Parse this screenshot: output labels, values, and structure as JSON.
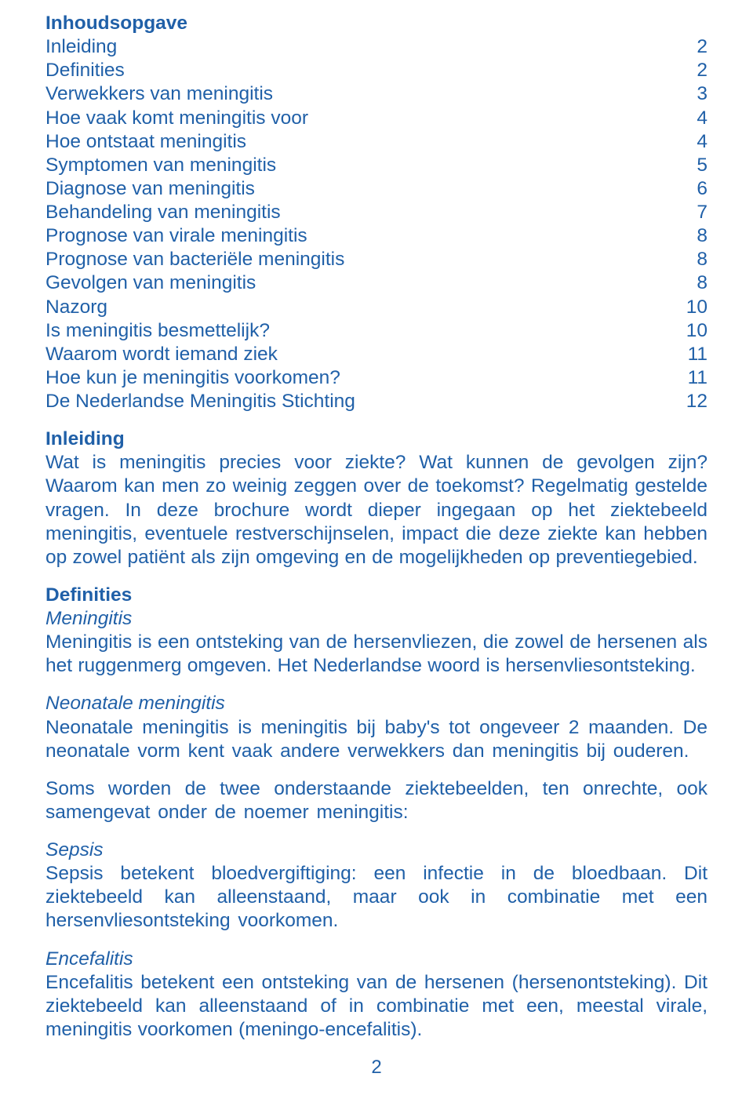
{
  "colors": {
    "text": "#2060a8",
    "background": "#ffffff"
  },
  "fontsize_body": 24.5,
  "fontsize_pagenum": 24,
  "toc": {
    "heading": "Inhoudsopgave",
    "items": [
      {
        "label": "Inleiding",
        "page": "2"
      },
      {
        "label": "Definities",
        "page": "2"
      },
      {
        "label": "Verwekkers van meningitis",
        "page": "3"
      },
      {
        "label": "Hoe vaak komt meningitis voor",
        "page": "4"
      },
      {
        "label": "Hoe ontstaat meningitis",
        "page": "4"
      },
      {
        "label": "Symptomen van meningitis",
        "page": "5"
      },
      {
        "label": "Diagnose van meningitis",
        "page": "6"
      },
      {
        "label": "Behandeling van meningitis",
        "page": "7"
      },
      {
        "label": "Prognose van virale meningitis",
        "page": "8"
      },
      {
        "label": "Prognose van bacteriële meningitis",
        "page": "8"
      },
      {
        "label": "Gevolgen van meningitis",
        "page": "8"
      },
      {
        "label": "Nazorg",
        "page": "10"
      },
      {
        "label": "Is meningitis besmettelijk?",
        "page": "10"
      },
      {
        "label": "Waarom wordt iemand ziek",
        "page": "11"
      },
      {
        "label": "Hoe kun je meningitis voorkomen?",
        "page": "11"
      },
      {
        "label": "De Nederlandse Meningitis Stichting",
        "page": "12"
      }
    ]
  },
  "inleiding": {
    "heading": "Inleiding",
    "body": "Wat is meningitis precies voor ziekte? Wat kunnen de gevolgen zijn? Waarom kan men zo weinig zeggen over de toekomst? Regelmatig gestelde vragen. In deze brochure wordt dieper ingegaan op het ziektebeeld meningitis, eventuele restverschijnselen, impact die deze ziekte kan hebben op zowel patiënt als zijn omgeving en de mogelijkheden op preventiegebied."
  },
  "definities": {
    "heading": "Definities",
    "meningitis_label": "Meningitis",
    "meningitis_body": "Meningitis is een ontsteking van de hersenvliezen, die zowel de hersenen als het ruggenmerg omgeven. Het Nederlandse woord is hersenvliesontsteking.",
    "neonatale_label": "Neonatale meningitis",
    "neonatale_body": "Neonatale meningitis is meningitis bij baby's tot ongeveer 2 maanden. De neonatale vorm kent vaak andere verwekkers dan meningitis bij ouderen.",
    "intro2": "Soms worden de twee onderstaande ziektebeelden, ten onrechte, ook samengevat onder de noemer meningitis:",
    "sepsis_label": "Sepsis",
    "sepsis_body": "Sepsis betekent bloedvergiftiging: een infectie in de bloedbaan. Dit ziektebeeld kan alleenstaand, maar ook in combinatie met een hersenvliesontsteking voorkomen.",
    "encefalitis_label": "Encefalitis",
    "encefalitis_body": "Encefalitis betekent een ontsteking van de hersenen (hersenontsteking). Dit ziektebeeld kan alleenstaand of in combinatie met een, meestal virale, meningitis voorkomen (meningo-encefalitis)."
  },
  "page_number": "2"
}
